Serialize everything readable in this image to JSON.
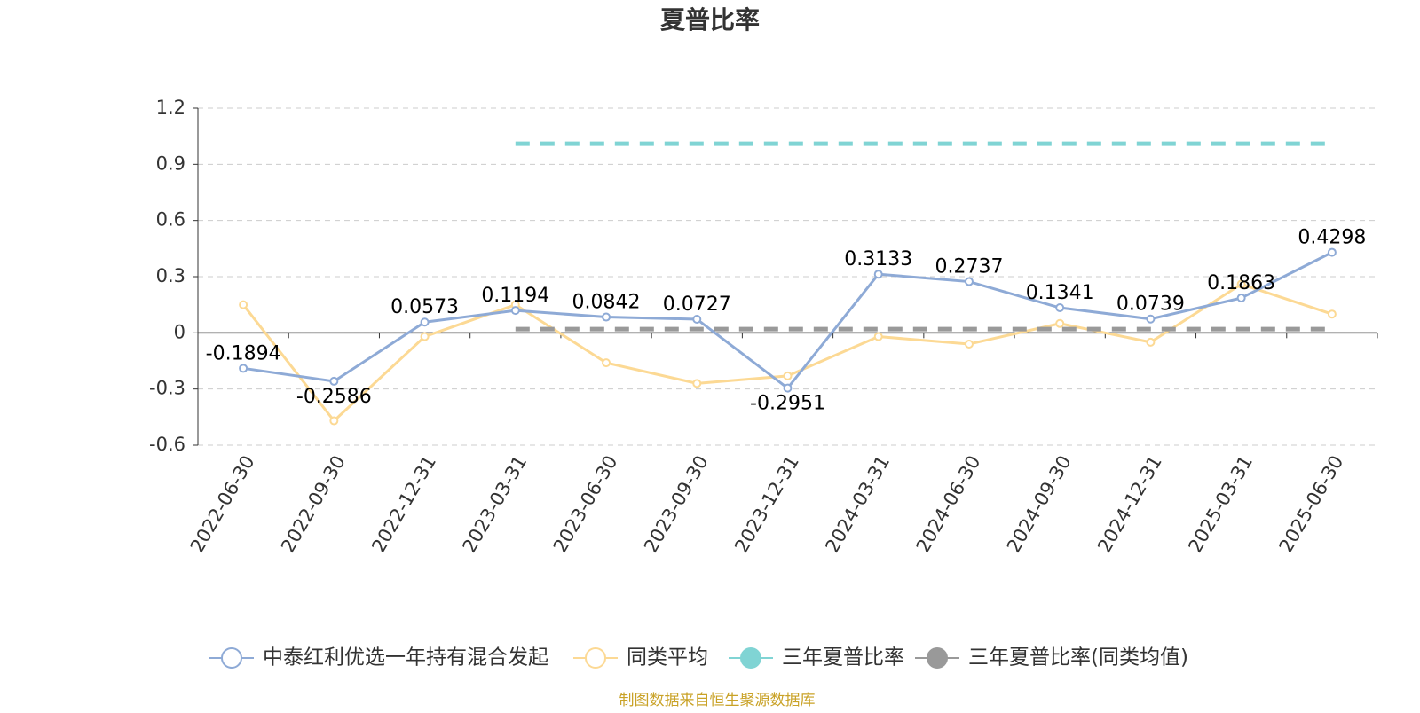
{
  "chart_data": {
    "type": "line",
    "title": "夏普比率",
    "categories": [
      "2022-06-30",
      "2022-09-30",
      "2022-12-31",
      "2023-03-31",
      "2023-06-30",
      "2023-09-30",
      "2023-12-31",
      "2024-03-31",
      "2024-06-30",
      "2024-09-30",
      "2024-12-31",
      "2025-03-31",
      "2025-06-30"
    ],
    "series": [
      {
        "name": "中泰红利优选一年持有混合发起",
        "color": "#8eaad6",
        "values": [
          -0.1894,
          -0.2586,
          0.0573,
          0.1194,
          0.0842,
          0.0727,
          -0.2951,
          0.3133,
          0.2737,
          0.1341,
          0.0739,
          0.1863,
          0.4298
        ]
      },
      {
        "name": "同类平均",
        "color": "#fcd994",
        "values": [
          0.15,
          -0.47,
          -0.02,
          0.15,
          -0.16,
          -0.27,
          -0.23,
          -0.02,
          -0.06,
          0.05,
          -0.05,
          0.26,
          0.1
        ]
      },
      {
        "name": "三年夏普比率",
        "color": "#80d4d4",
        "values": [
          null,
          null,
          null,
          1.01,
          1.01,
          1.01,
          1.01,
          1.01,
          1.01,
          1.01,
          1.01,
          1.01,
          1.01
        ]
      },
      {
        "name": "三年夏普比率(同类均值)",
        "color": "#999999",
        "values": [
          null,
          null,
          null,
          0.02,
          0.02,
          0.02,
          0.02,
          0.02,
          0.02,
          0.02,
          0.02,
          0.02,
          0.02
        ]
      }
    ],
    "ylim": [
      -0.6,
      1.2
    ],
    "yticks": [
      -0.6,
      -0.3,
      0,
      0.3,
      0.6,
      0.9,
      1.2
    ],
    "grid": true,
    "source": "制图数据来自恒生聚源数据库"
  }
}
